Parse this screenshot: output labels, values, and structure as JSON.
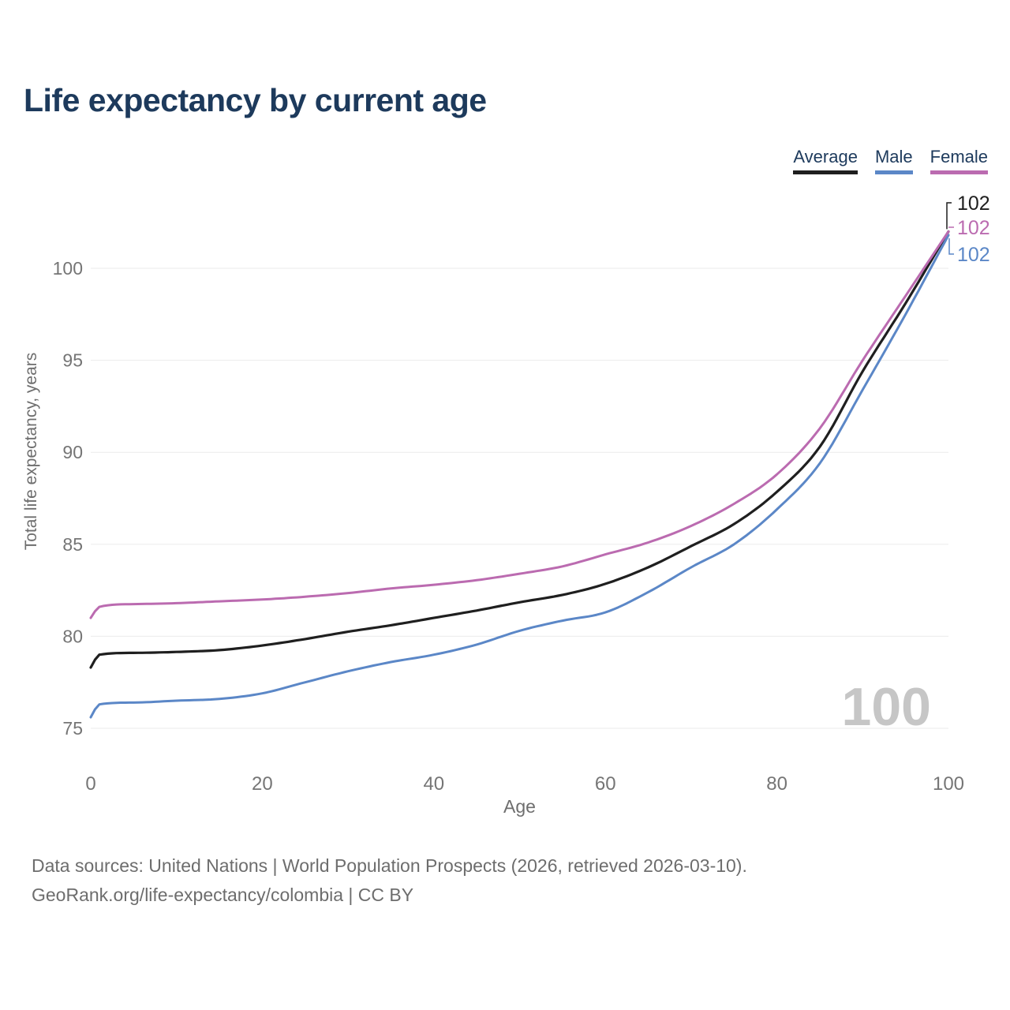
{
  "title": "Life expectancy by current age",
  "legend": {
    "items": [
      {
        "label": "Average",
        "color": "#1f1f1f"
      },
      {
        "label": "Male",
        "color": "#5b87c7"
      },
      {
        "label": "Female",
        "color": "#bb6bb0"
      }
    ]
  },
  "chart_data": {
    "type": "line",
    "title": "Life expectancy by current age",
    "xlabel": "Age",
    "ylabel": "Total life expectancy, years",
    "xlim": [
      0,
      100
    ],
    "ylim": [
      74.3,
      103.2
    ],
    "xticks": [
      0,
      20,
      40,
      60,
      80,
      100
    ],
    "yticks": [
      75,
      80,
      85,
      90,
      95,
      100
    ],
    "grid": "horizontal-only",
    "legend_position": "top-right",
    "hover_age_watermark": "100",
    "x": [
      0,
      1,
      5,
      10,
      15,
      20,
      25,
      30,
      35,
      40,
      45,
      50,
      55,
      60,
      65,
      70,
      75,
      80,
      85,
      90,
      95,
      100
    ],
    "series": [
      {
        "name": "Average",
        "color": "#1f1f1f",
        "end_label": "102",
        "values": [
          78.3,
          79.0,
          79.1,
          79.15,
          79.25,
          79.5,
          79.85,
          80.25,
          80.6,
          81.0,
          81.4,
          81.85,
          82.25,
          82.85,
          83.75,
          84.9,
          86.1,
          87.85,
          90.3,
          94.4,
          98.1,
          102.0
        ]
      },
      {
        "name": "Male",
        "color": "#5b87c7",
        "end_label": "102",
        "values": [
          75.6,
          76.3,
          76.4,
          76.5,
          76.6,
          76.9,
          77.5,
          78.1,
          78.6,
          79.0,
          79.55,
          80.3,
          80.85,
          81.3,
          82.4,
          83.75,
          85.0,
          86.9,
          89.4,
          93.4,
          97.5,
          101.8
        ]
      },
      {
        "name": "Female",
        "color": "#bb6bb0",
        "end_label": "102",
        "values": [
          81.0,
          81.6,
          81.75,
          81.8,
          81.9,
          82.0,
          82.15,
          82.35,
          82.6,
          82.8,
          83.05,
          83.4,
          83.8,
          84.45,
          85.1,
          86.0,
          87.2,
          88.8,
          91.3,
          95.0,
          98.5,
          102.0
        ]
      }
    ],
    "colors": {
      "title_text": "#1d3a5c",
      "axis_text": "#757575",
      "grid_line": "#ebebeb",
      "watermark": "#c6c6c6",
      "footer_text": "#6d6d6d"
    }
  },
  "footer": {
    "line1": "Data sources: United Nations | World Population Prospects (2026, retrieved 2026-03-10).",
    "line2": "GeoRank.org/life-expectancy/colombia | CC BY"
  }
}
